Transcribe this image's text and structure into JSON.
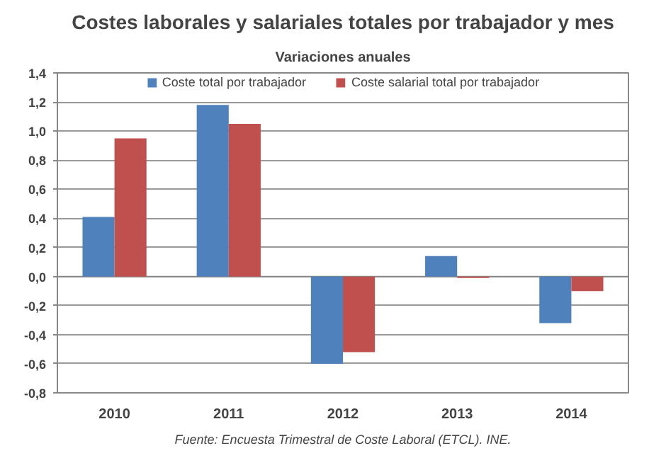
{
  "chart_data": {
    "type": "bar",
    "title": "Costes laborales y salariales totales por trabajador y mes",
    "subtitle": "Variaciones anuales",
    "categories": [
      "2010",
      "2011",
      "2012",
      "2013",
      "2014"
    ],
    "series": [
      {
        "name": "Coste total por trabajador",
        "color": "#4f81bd",
        "values": [
          0.41,
          1.18,
          -0.6,
          0.14,
          -0.32
        ]
      },
      {
        "name": "Coste salarial total por trabajador",
        "color": "#c0504d",
        "values": [
          0.95,
          1.05,
          -0.52,
          -0.01,
          -0.1
        ]
      }
    ],
    "ylim": [
      -0.8,
      1.4
    ],
    "yticks": [
      {
        "value": -0.8,
        "label": "-0,8"
      },
      {
        "value": -0.6,
        "label": "-0,6"
      },
      {
        "value": -0.4,
        "label": "-0,4"
      },
      {
        "value": -0.2,
        "label": "-0,2"
      },
      {
        "value": 0,
        "label": "0,0"
      },
      {
        "value": 0.2,
        "label": "0,2"
      },
      {
        "value": 0.4,
        "label": "0,4"
      },
      {
        "value": 0.6,
        "label": "0,6"
      },
      {
        "value": 0.8,
        "label": "0,8"
      },
      {
        "value": 1.0,
        "label": "1,0"
      },
      {
        "value": 1.2,
        "label": "1,2"
      },
      {
        "value": 1.4,
        "label": "1,4"
      }
    ],
    "grid": "y",
    "legend": "top",
    "annotations": [
      "Fuente: Encuesta Trimestral de Coste Laboral (ETCL). INE."
    ]
  }
}
